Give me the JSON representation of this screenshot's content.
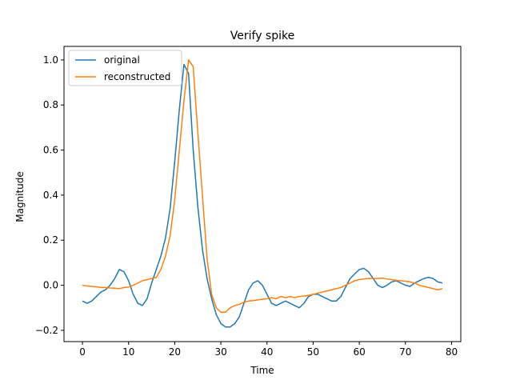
{
  "chart_data": {
    "type": "line",
    "title": "Verify spike",
    "xlabel": "Time",
    "ylabel": "Magnitude",
    "xlim": [
      -4,
      82
    ],
    "ylim": [
      -0.25,
      1.06
    ],
    "xticks": [
      0,
      10,
      20,
      30,
      40,
      50,
      60,
      70,
      80
    ],
    "yticks": [
      -0.2,
      0.0,
      0.2,
      0.4,
      0.6,
      0.8,
      1.0
    ],
    "ytick_labels": [
      "−0.2",
      "0.0",
      "0.2",
      "0.4",
      "0.6",
      "0.8",
      "1.0"
    ],
    "grid": false,
    "legend_position": "top-left",
    "series": [
      {
        "name": "original",
        "color": "#1f77b4",
        "values": [
          -0.07,
          -0.08,
          -0.07,
          -0.05,
          -0.03,
          -0.02,
          0.0,
          0.03,
          0.07,
          0.06,
          0.02,
          -0.04,
          -0.08,
          -0.09,
          -0.06,
          0.01,
          0.07,
          0.13,
          0.21,
          0.34,
          0.55,
          0.78,
          0.98,
          0.94,
          0.6,
          0.35,
          0.16,
          0.03,
          -0.06,
          -0.13,
          -0.17,
          -0.185,
          -0.185,
          -0.17,
          -0.14,
          -0.08,
          -0.02,
          0.01,
          0.02,
          0.0,
          -0.04,
          -0.08,
          -0.09,
          -0.08,
          -0.07,
          -0.08,
          -0.09,
          -0.1,
          -0.08,
          -0.05,
          -0.04,
          -0.04,
          -0.05,
          -0.06,
          -0.07,
          -0.07,
          -0.05,
          -0.01,
          0.03,
          0.05,
          0.07,
          0.075,
          0.06,
          0.03,
          0.0,
          -0.01,
          0.0,
          0.015,
          0.02,
          0.01,
          0.0,
          -0.005,
          0.01,
          0.02,
          0.03,
          0.035,
          0.03,
          0.015,
          0.01
        ]
      },
      {
        "name": "reconstructed",
        "color": "#ff7f0e",
        "values": [
          0.0,
          -0.003,
          -0.005,
          -0.007,
          -0.01,
          -0.01,
          -0.012,
          -0.013,
          -0.015,
          -0.01,
          -0.008,
          0.0,
          0.01,
          0.02,
          0.025,
          0.03,
          0.035,
          0.07,
          0.13,
          0.22,
          0.38,
          0.6,
          0.82,
          1.0,
          0.97,
          0.68,
          0.4,
          0.12,
          -0.04,
          -0.1,
          -0.12,
          -0.12,
          -0.1,
          -0.09,
          -0.085,
          -0.075,
          -0.07,
          -0.068,
          -0.065,
          -0.062,
          -0.06,
          -0.055,
          -0.06,
          -0.05,
          -0.055,
          -0.05,
          -0.055,
          -0.05,
          -0.048,
          -0.045,
          -0.04,
          -0.035,
          -0.03,
          -0.025,
          -0.02,
          -0.015,
          -0.01,
          0.0,
          0.01,
          0.02,
          0.025,
          0.028,
          0.03,
          0.03,
          0.03,
          0.032,
          0.028,
          0.025,
          0.022,
          0.02,
          0.018,
          0.015,
          0.01,
          0.0,
          -0.005,
          -0.01,
          -0.015,
          -0.02,
          -0.015
        ]
      }
    ]
  }
}
